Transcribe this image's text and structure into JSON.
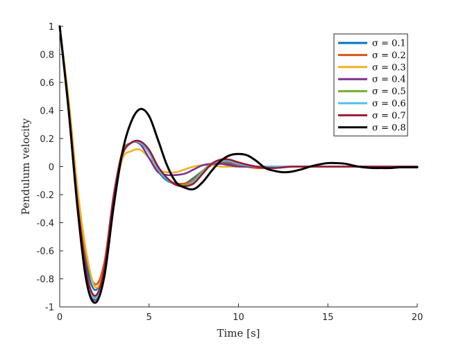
{
  "chart_data": {
    "type": "line",
    "xlabel": "Time [s]",
    "ylabel": "Pendulum velocity",
    "xlim": [
      0,
      20
    ],
    "ylim": [
      -1,
      1
    ],
    "xticks": [
      "0",
      "5",
      "10",
      "15",
      "20"
    ],
    "yticks": [
      "1",
      "0.8",
      "0.6",
      "0.4",
      "0.2",
      "0",
      "-0.2",
      "-0.4",
      "-0.6",
      "-0.8",
      "-1"
    ],
    "grid": false,
    "legend_position": "top-right",
    "series": [
      {
        "name": "σ = 0.1",
        "color": "#0072BD",
        "x": [
          0,
          0.5,
          1,
          1.5,
          2,
          2.5,
          3,
          3.5,
          4,
          4.5,
          5,
          5.5,
          6,
          6.5,
          7,
          7.5,
          8,
          8.5,
          9,
          9.5,
          10,
          11,
          12,
          13,
          14,
          15,
          16,
          17,
          18,
          19,
          20
        ],
        "y": [
          1,
          0.45,
          -0.2,
          -0.7,
          -0.88,
          -0.7,
          -0.25,
          0.08,
          0.17,
          0.17,
          0.1,
          -0.03,
          -0.1,
          -0.12,
          -0.12,
          -0.08,
          -0.03,
          0.01,
          0.02,
          0.02,
          0.01,
          0,
          0,
          0,
          0,
          0,
          0,
          0,
          0,
          0,
          0
        ]
      },
      {
        "name": "σ = 0.2",
        "color": "#D95319",
        "x": [
          0,
          0.5,
          1,
          1.5,
          2,
          2.5,
          3,
          3.5,
          4,
          4.5,
          5,
          5.5,
          6,
          6.5,
          7,
          7.5,
          8,
          8.5,
          9,
          9.5,
          10,
          11,
          12,
          13,
          14,
          15,
          16,
          17,
          18,
          19,
          20
        ],
        "y": [
          1,
          0.45,
          -0.18,
          -0.65,
          -0.84,
          -0.68,
          -0.22,
          0.1,
          0.17,
          0.18,
          0.11,
          -0.02,
          -0.09,
          -0.12,
          -0.12,
          -0.09,
          -0.03,
          0.01,
          0.03,
          0.03,
          0.01,
          -0.01,
          -0.01,
          0,
          0,
          0,
          0,
          0,
          0,
          0,
          0
        ]
      },
      {
        "name": "σ = 0.3",
        "color": "#EDB120",
        "x": [
          0,
          0.5,
          1,
          1.5,
          2,
          2.5,
          3,
          3.5,
          4,
          4.5,
          5,
          5.5,
          6,
          6.5,
          7,
          7.5,
          8,
          8.5,
          9,
          9.5,
          10,
          11,
          12,
          13,
          14,
          15,
          16,
          17,
          18,
          19,
          20
        ],
        "y": [
          1,
          0.48,
          -0.16,
          -0.62,
          -0.86,
          -0.72,
          -0.28,
          0.05,
          0.11,
          0.12,
          0.06,
          -0.02,
          -0.04,
          -0.04,
          -0.02,
          0,
          0.01,
          0.01,
          0,
          0,
          0,
          0,
          0,
          0,
          0,
          0,
          0,
          0,
          0,
          0,
          0
        ]
      },
      {
        "name": "σ = 0.4",
        "color": "#7E2F8E",
        "x": [
          0,
          0.5,
          1,
          1.5,
          2,
          2.5,
          3,
          3.5,
          4,
          4.5,
          5,
          5.5,
          6,
          6.5,
          7,
          7.5,
          8,
          8.5,
          9,
          9.5,
          10,
          11,
          12,
          13,
          14,
          15,
          16,
          17,
          18,
          19,
          20
        ],
        "y": [
          1,
          0.4,
          -0.3,
          -0.8,
          -0.95,
          -0.72,
          -0.22,
          0.1,
          0.17,
          0.16,
          0.06,
          -0.04,
          -0.06,
          -0.06,
          -0.05,
          -0.02,
          0.01,
          0.02,
          0.02,
          0.01,
          0,
          0,
          0,
          0,
          0,
          0,
          0,
          0,
          0,
          0,
          0
        ]
      },
      {
        "name": "σ = 0.5",
        "color": "#77AC30",
        "x": [
          0,
          0.5,
          1,
          1.5,
          2,
          2.5,
          3,
          3.5,
          4,
          4.5,
          5,
          5.5,
          6,
          6.5,
          7,
          7.5,
          8,
          8.5,
          9,
          9.5,
          10,
          11,
          12,
          13,
          14,
          15,
          16,
          17,
          18,
          19,
          20
        ],
        "y": [
          1,
          0.42,
          -0.28,
          -0.78,
          -0.93,
          -0.72,
          -0.24,
          0.09,
          0.17,
          0.17,
          0.1,
          -0.02,
          -0.09,
          -0.13,
          -0.13,
          -0.1,
          -0.03,
          0.02,
          0.04,
          0.04,
          0.02,
          0,
          0,
          0,
          0,
          0,
          0,
          0,
          0,
          0,
          0
        ]
      },
      {
        "name": "σ = 0.6",
        "color": "#4DBEEE",
        "x": [
          0,
          0.5,
          1,
          1.5,
          2,
          2.5,
          3,
          3.5,
          4,
          4.5,
          5,
          5.5,
          6,
          6.5,
          7,
          7.5,
          8,
          8.5,
          9,
          9.5,
          10,
          11,
          12,
          13,
          14,
          15,
          16,
          17,
          18,
          19,
          20
        ],
        "y": [
          1,
          0.42,
          -0.28,
          -0.78,
          -0.94,
          -0.72,
          -0.24,
          0.08,
          0.17,
          0.17,
          0.1,
          -0.02,
          -0.09,
          -0.13,
          -0.14,
          -0.11,
          -0.04,
          0.02,
          0.04,
          0.04,
          0.02,
          0,
          0,
          0,
          0,
          0,
          0,
          0,
          0,
          0,
          0
        ]
      },
      {
        "name": "σ = 0.7",
        "color": "#A2142F",
        "x": [
          0,
          0.5,
          1,
          1.5,
          2,
          2.5,
          3,
          3.5,
          4,
          4.5,
          5,
          5.5,
          6,
          6.5,
          7,
          7.5,
          8,
          8.5,
          9,
          9.5,
          10,
          11,
          12,
          13,
          14,
          15,
          16,
          17,
          18,
          19,
          20
        ],
        "y": [
          1,
          0.42,
          -0.26,
          -0.76,
          -0.92,
          -0.72,
          -0.24,
          0.08,
          0.17,
          0.18,
          0.12,
          0,
          -0.08,
          -0.13,
          -0.14,
          -0.12,
          -0.05,
          0.02,
          0.05,
          0.05,
          0.03,
          0,
          -0.01,
          0,
          0,
          0,
          0,
          0,
          0,
          0,
          0
        ]
      },
      {
        "name": "σ = 0.8",
        "color": "#000000",
        "x": [
          0,
          0.5,
          1,
          1.5,
          2,
          2.5,
          3,
          3.5,
          4,
          4.5,
          5,
          5.5,
          6,
          6.5,
          7,
          7.5,
          8,
          8.5,
          9,
          9.5,
          10,
          10.5,
          11,
          11.5,
          12,
          12.5,
          13,
          13.5,
          14,
          14.5,
          15,
          15.5,
          16,
          16.5,
          17,
          17.5,
          18,
          18.5,
          19,
          19.5,
          20
        ],
        "y": [
          1,
          0.4,
          -0.3,
          -0.82,
          -0.97,
          -0.78,
          -0.3,
          0.1,
          0.32,
          0.41,
          0.36,
          0.19,
          0.01,
          -0.11,
          -0.15,
          -0.16,
          -0.11,
          -0.03,
          0.04,
          0.08,
          0.09,
          0.08,
          0.04,
          -0.01,
          -0.03,
          -0.04,
          -0.035,
          -0.02,
          0,
          0.015,
          0.025,
          0.025,
          0.02,
          0.005,
          -0.005,
          -0.01,
          -0.01,
          -0.01,
          -0.005,
          -0.005,
          -0.005
        ]
      }
    ]
  }
}
